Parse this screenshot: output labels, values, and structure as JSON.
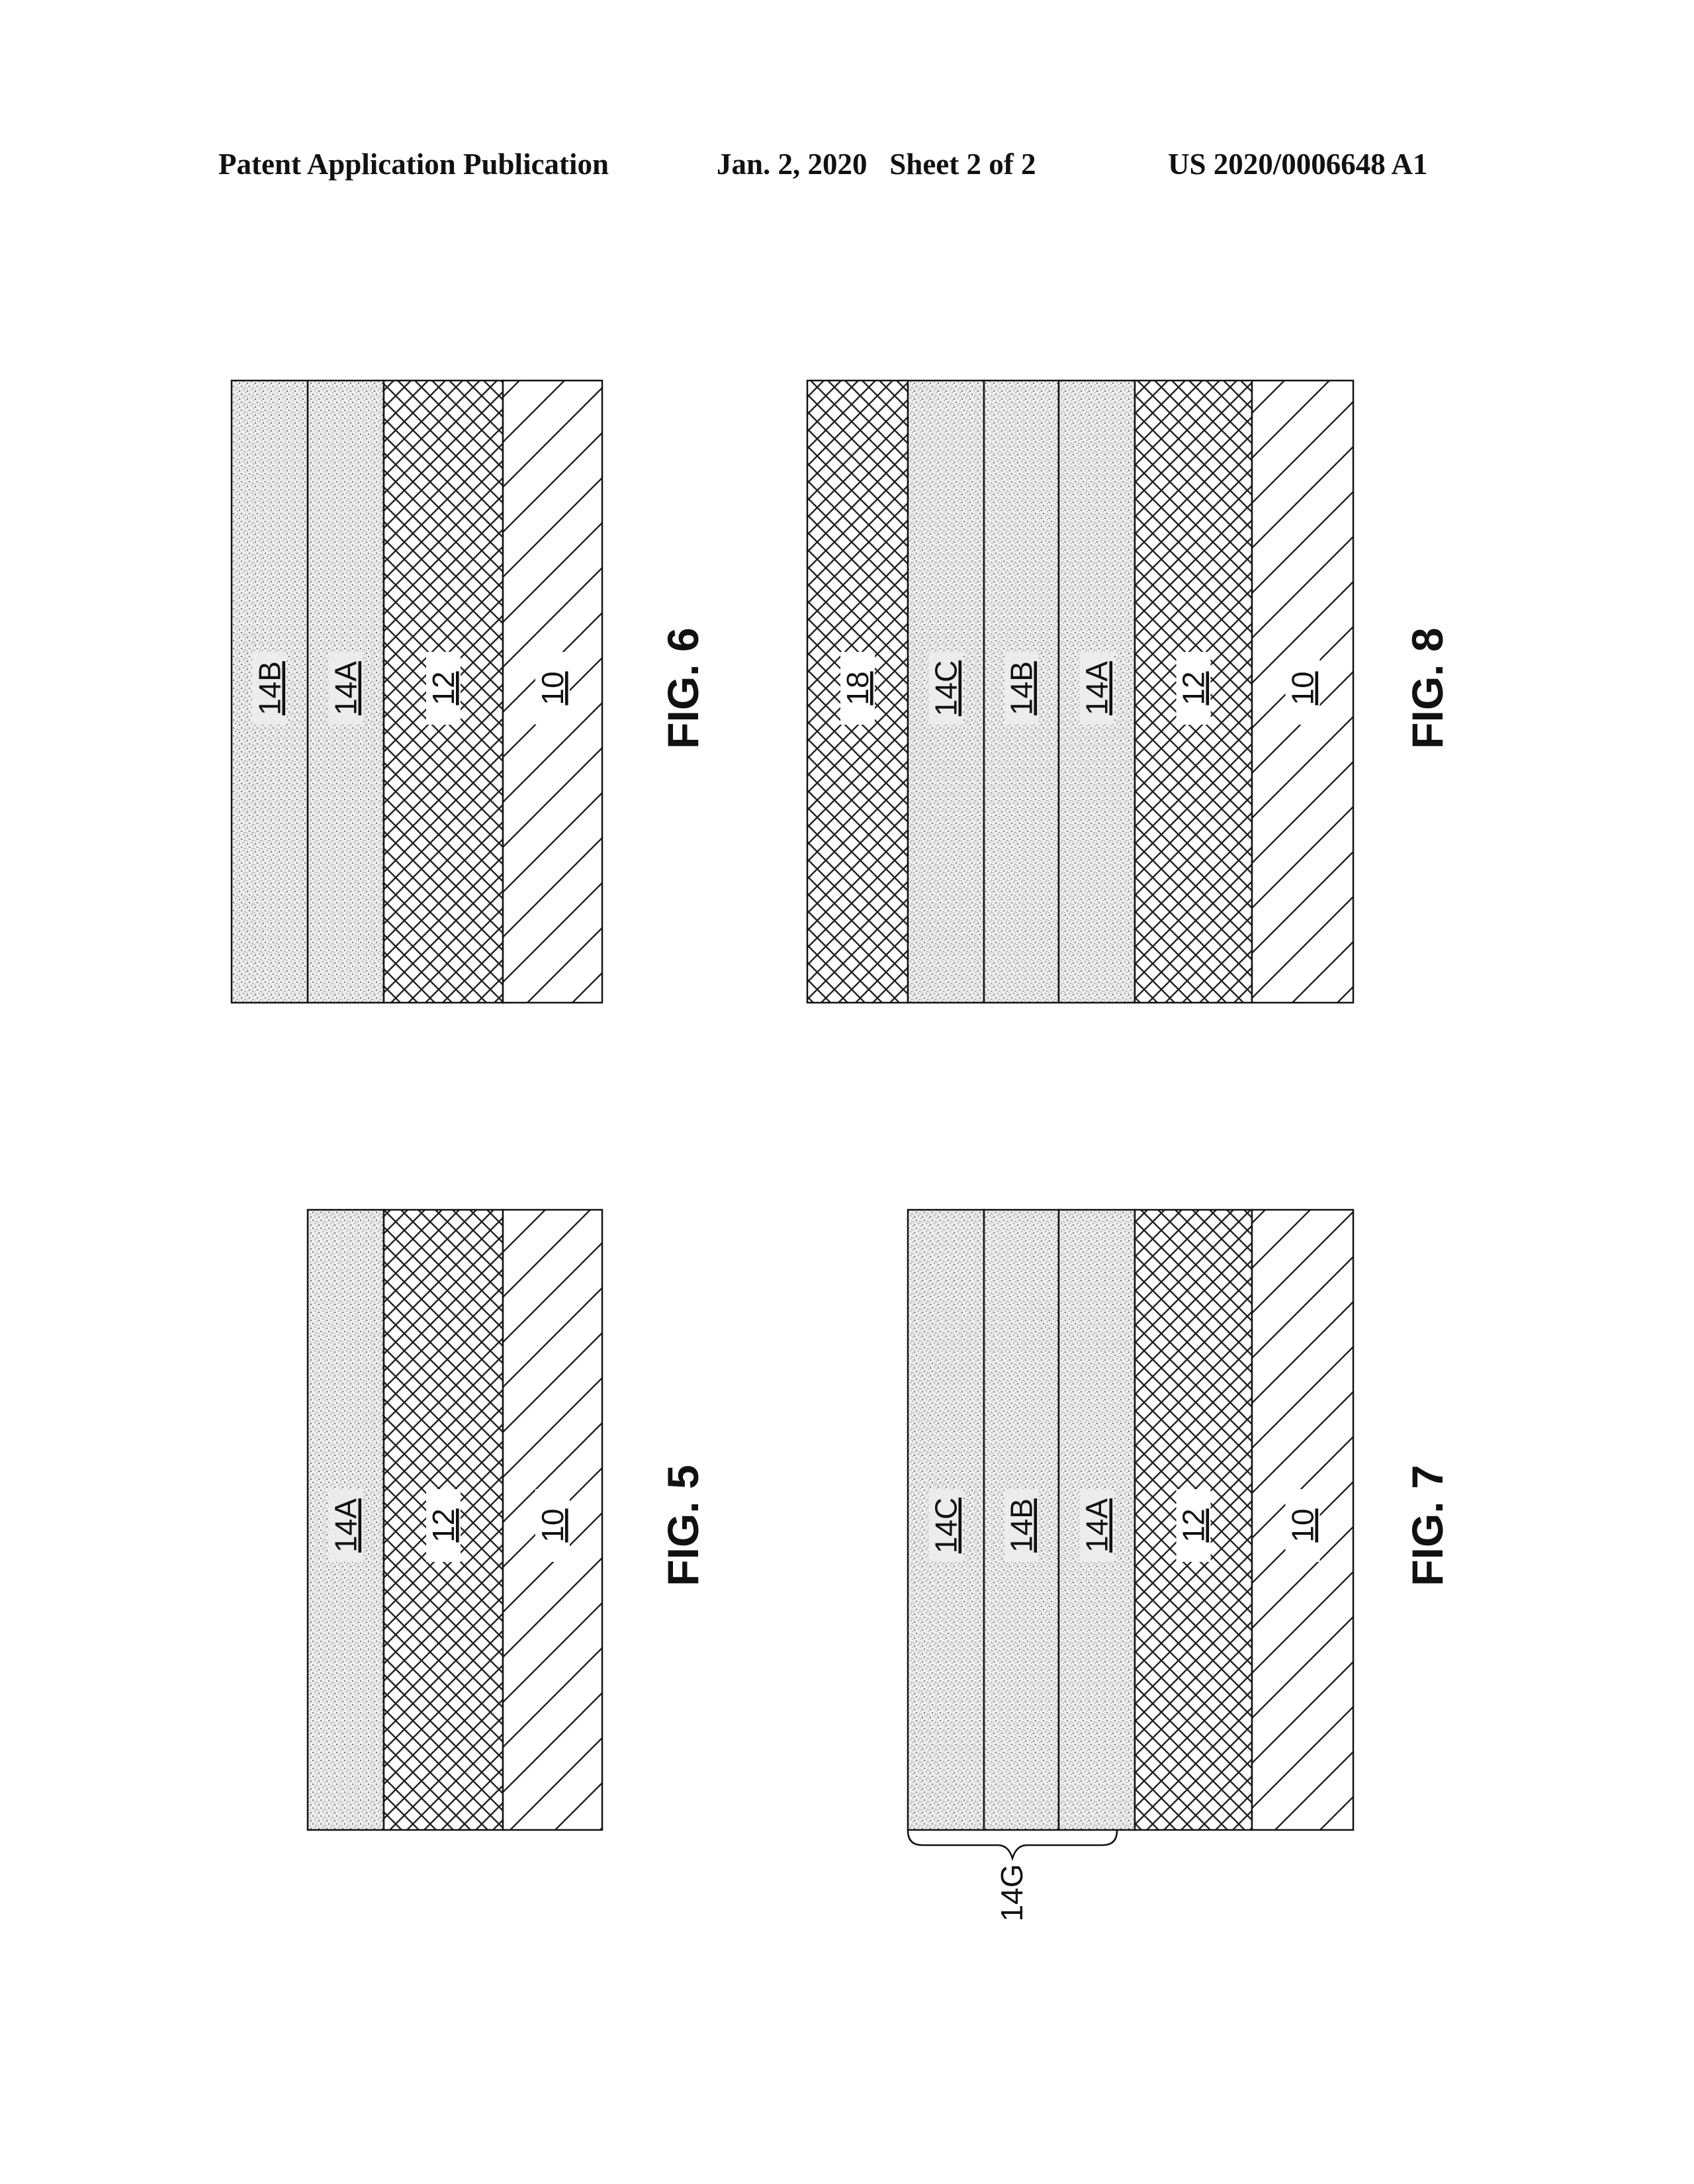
{
  "header": {
    "left": "Patent Application Publication",
    "middle": "Jan. 2, 2020   Sheet 2 of 2",
    "right": "US 2020/0006648 A1"
  },
  "figures": {
    "fig5": {
      "caption": "FIG. 5",
      "layers": [
        {
          "label": "14A",
          "fill": "stipple"
        },
        {
          "label": "12",
          "fill": "crosshatch"
        },
        {
          "label": "10",
          "fill": "diagonal"
        }
      ]
    },
    "fig6": {
      "caption": "FIG. 6",
      "layers": [
        {
          "label": "14B",
          "fill": "stipple"
        },
        {
          "label": "14A",
          "fill": "stipple"
        },
        {
          "label": "12",
          "fill": "crosshatch"
        },
        {
          "label": "10",
          "fill": "diagonal"
        }
      ]
    },
    "fig7": {
      "caption": "FIG. 7",
      "layers": [
        {
          "label": "14C",
          "fill": "stipple"
        },
        {
          "label": "14B",
          "fill": "stipple"
        },
        {
          "label": "14A",
          "fill": "stipple"
        },
        {
          "label": "12",
          "fill": "crosshatch"
        },
        {
          "label": "10",
          "fill": "diagonal"
        }
      ],
      "brace_label": "14G"
    },
    "fig8": {
      "caption": "FIG. 8",
      "layers": [
        {
          "label": "18",
          "fill": "crosshatch"
        },
        {
          "label": "14C",
          "fill": "stipple"
        },
        {
          "label": "14B",
          "fill": "stipple"
        },
        {
          "label": "14A",
          "fill": "stipple"
        },
        {
          "label": "12",
          "fill": "crosshatch"
        },
        {
          "label": "10",
          "fill": "diagonal"
        }
      ]
    }
  },
  "colors": {
    "ink": "#111111",
    "stipple_bg": "#e9e9e9"
  }
}
